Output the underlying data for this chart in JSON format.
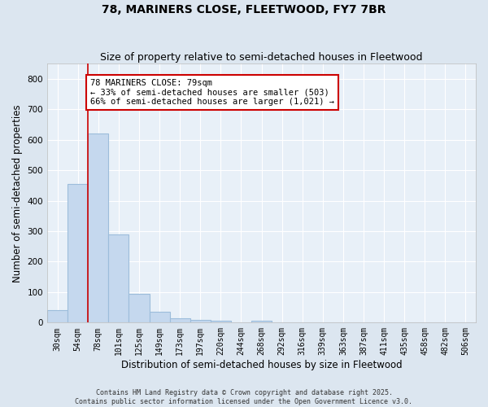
{
  "title": "78, MARINERS CLOSE, FLEETWOOD, FY7 7BR",
  "subtitle": "Size of property relative to semi-detached houses in Fleetwood",
  "xlabel": "Distribution of semi-detached houses by size in Fleetwood",
  "ylabel": "Number of semi-detached properties",
  "footer_line1": "Contains HM Land Registry data © Crown copyright and database right 2025.",
  "footer_line2": "Contains public sector information licensed under the Open Government Licence v3.0.",
  "categories": [
    "30sqm",
    "54sqm",
    "78sqm",
    "101sqm",
    "125sqm",
    "149sqm",
    "173sqm",
    "197sqm",
    "220sqm",
    "244sqm",
    "268sqm",
    "292sqm",
    "316sqm",
    "339sqm",
    "363sqm",
    "387sqm",
    "411sqm",
    "435sqm",
    "458sqm",
    "482sqm",
    "506sqm"
  ],
  "values": [
    40,
    455,
    620,
    290,
    95,
    35,
    15,
    10,
    5,
    0,
    5,
    0,
    0,
    0,
    0,
    0,
    0,
    0,
    0,
    0,
    0
  ],
  "bar_color": "#c5d8ee",
  "bar_edge_color": "#9dbddb",
  "highlight_index": 2,
  "highlight_line_color": "#cc0000",
  "ylim": [
    0,
    850
  ],
  "yticks": [
    0,
    100,
    200,
    300,
    400,
    500,
    600,
    700,
    800
  ],
  "annotation_text": "78 MARINERS CLOSE: 79sqm\n← 33% of semi-detached houses are smaller (503)\n66% of semi-detached houses are larger (1,021) →",
  "annotation_box_color": "#cc0000",
  "bg_color": "#dce6f0",
  "plot_bg_color": "#e8f0f8",
  "grid_color": "#ffffff",
  "title_fontsize": 10,
  "subtitle_fontsize": 9,
  "axis_label_fontsize": 8.5,
  "tick_fontsize": 7,
  "annotation_fontsize": 7.5,
  "footer_fontsize": 6
}
